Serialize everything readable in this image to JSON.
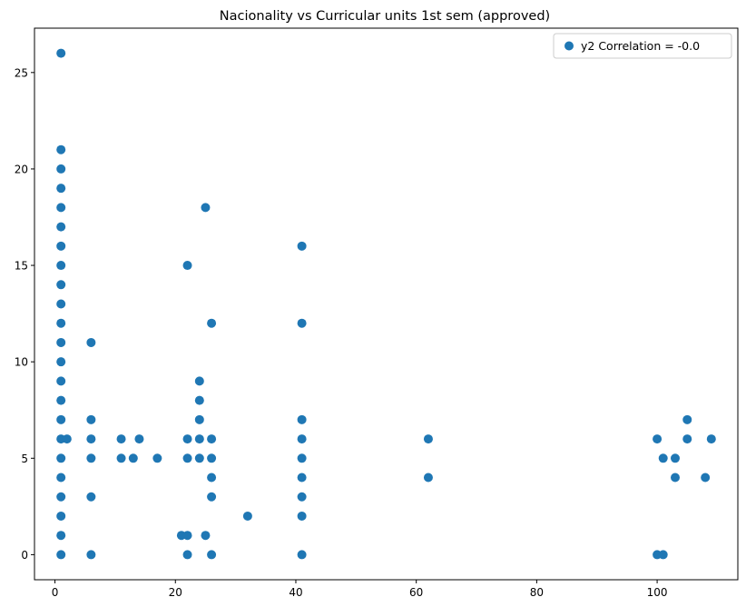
{
  "chart_data": {
    "type": "scatter",
    "title": "Nacionality vs Curricular units 1st sem (approved)",
    "xlabel": "",
    "ylabel": "",
    "xlim": [
      -3.4,
      113.4
    ],
    "ylim": [
      -1.3,
      27.3
    ],
    "xticks": [
      0,
      20,
      40,
      60,
      80,
      100
    ],
    "yticks": [
      0,
      5,
      10,
      15,
      20,
      25
    ],
    "grid": false,
    "legend": {
      "placement": "top-right"
    },
    "colors": {
      "series": "#1f77b4"
    },
    "series": [
      {
        "name": "y2 Correlation = -0.0",
        "points": [
          [
            1,
            0
          ],
          [
            1,
            1
          ],
          [
            1,
            2
          ],
          [
            1,
            3
          ],
          [
            1,
            4
          ],
          [
            1,
            5
          ],
          [
            1,
            6
          ],
          [
            1,
            7
          ],
          [
            1,
            8
          ],
          [
            1,
            9
          ],
          [
            1,
            10
          ],
          [
            1,
            11
          ],
          [
            1,
            12
          ],
          [
            1,
            13
          ],
          [
            1,
            14
          ],
          [
            1,
            15
          ],
          [
            1,
            16
          ],
          [
            1,
            17
          ],
          [
            1,
            18
          ],
          [
            1,
            19
          ],
          [
            1,
            20
          ],
          [
            1,
            21
          ],
          [
            1,
            26
          ],
          [
            2,
            6
          ],
          [
            6,
            0
          ],
          [
            6,
            3
          ],
          [
            6,
            5
          ],
          [
            6,
            6
          ],
          [
            6,
            7
          ],
          [
            6,
            11
          ],
          [
            11,
            5
          ],
          [
            11,
            6
          ],
          [
            13,
            5
          ],
          [
            14,
            6
          ],
          [
            17,
            5
          ],
          [
            21,
            1
          ],
          [
            22,
            0
          ],
          [
            22,
            1
          ],
          [
            22,
            5
          ],
          [
            22,
            6
          ],
          [
            22,
            15
          ],
          [
            24,
            5
          ],
          [
            24,
            6
          ],
          [
            24,
            7
          ],
          [
            24,
            8
          ],
          [
            24,
            9
          ],
          [
            25,
            1
          ],
          [
            25,
            18
          ],
          [
            26,
            0
          ],
          [
            26,
            3
          ],
          [
            26,
            4
          ],
          [
            26,
            5
          ],
          [
            26,
            6
          ],
          [
            26,
            12
          ],
          [
            32,
            2
          ],
          [
            41,
            0
          ],
          [
            41,
            2
          ],
          [
            41,
            3
          ],
          [
            41,
            4
          ],
          [
            41,
            5
          ],
          [
            41,
            6
          ],
          [
            41,
            7
          ],
          [
            41,
            12
          ],
          [
            41,
            16
          ],
          [
            62,
            4
          ],
          [
            62,
            6
          ],
          [
            100,
            0
          ],
          [
            100,
            6
          ],
          [
            101,
            0
          ],
          [
            101,
            5
          ],
          [
            103,
            4
          ],
          [
            103,
            5
          ],
          [
            105,
            6
          ],
          [
            105,
            7
          ],
          [
            108,
            4
          ],
          [
            109,
            6
          ]
        ]
      }
    ]
  }
}
